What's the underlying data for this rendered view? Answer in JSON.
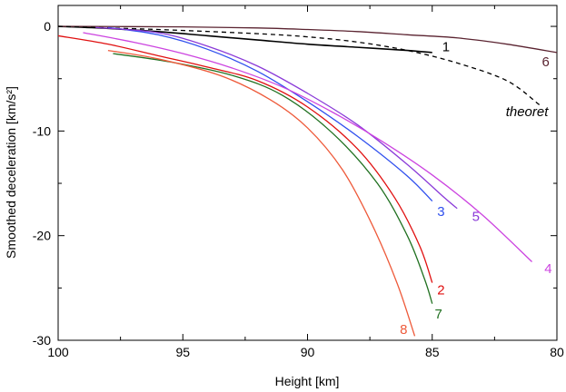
{
  "chart_data": {
    "type": "line",
    "title": "",
    "xlabel": "Height [km]",
    "ylabel": "Smoothed deceleration [km/s²]",
    "xlim": [
      100,
      80
    ],
    "ylim": [
      -30,
      2
    ],
    "xticks": [
      100,
      95,
      90,
      85,
      80
    ],
    "yticks": [
      0,
      -10,
      -20,
      -30
    ],
    "xtick_labels": [
      "100",
      "95",
      "90",
      "85",
      "80"
    ],
    "ytick_labels": [
      "0",
      "-10",
      "-20",
      "-30"
    ],
    "grid": false,
    "series": [
      {
        "name": "1",
        "color": "#000000",
        "dash": false,
        "label_at": [
          84.6,
          -2.4
        ],
        "points": [
          [
            100,
            0
          ],
          [
            98,
            -0.2
          ],
          [
            96,
            -0.5
          ],
          [
            94,
            -0.9
          ],
          [
            92,
            -1.3
          ],
          [
            90,
            -1.7
          ],
          [
            88,
            -2.0
          ],
          [
            86,
            -2.3
          ],
          [
            85,
            -2.5
          ]
        ]
      },
      {
        "name": "6",
        "color": "#5a2330",
        "dash": false,
        "label_at": [
          80.6,
          -3.8
        ],
        "points": [
          [
            100,
            0
          ],
          [
            95,
            -0.05
          ],
          [
            92,
            -0.15
          ],
          [
            90,
            -0.3
          ],
          [
            88,
            -0.5
          ],
          [
            86,
            -0.8
          ],
          [
            84,
            -1.1
          ],
          [
            82,
            -1.7
          ],
          [
            80,
            -2.5
          ]
        ]
      },
      {
        "name": "theoret",
        "color": "#000000",
        "dash": true,
        "label_at": [
          81.2,
          -8.6
        ],
        "points": [
          [
            100,
            0
          ],
          [
            96,
            -0.3
          ],
          [
            92,
            -0.7
          ],
          [
            90,
            -1.0
          ],
          [
            88,
            -1.5
          ],
          [
            86,
            -2.3
          ],
          [
            84,
            -3.5
          ],
          [
            82,
            -5.2
          ],
          [
            80.7,
            -7.5
          ]
        ]
      },
      {
        "name": "3",
        "color": "#3050ee",
        "dash": false,
        "label_at": [
          84.8,
          -18.1
        ],
        "points": [
          [
            98,
            -0.1
          ],
          [
            96,
            -0.8
          ],
          [
            94,
            -2.2
          ],
          [
            92,
            -4.3
          ],
          [
            90,
            -7.2
          ],
          [
            88,
            -10.5
          ],
          [
            86,
            -14.3
          ],
          [
            85,
            -16.7
          ]
        ]
      },
      {
        "name": "5",
        "color": "#8a3ad8",
        "dash": false,
        "label_at": [
          83.4,
          -18.6
        ],
        "points": [
          [
            98.5,
            -0.1
          ],
          [
            96,
            -0.6
          ],
          [
            94,
            -1.9
          ],
          [
            92,
            -3.8
          ],
          [
            90,
            -6.4
          ],
          [
            88,
            -9.4
          ],
          [
            86,
            -13.2
          ],
          [
            84.5,
            -16.4
          ],
          [
            84,
            -17.4
          ]
        ]
      },
      {
        "name": "4",
        "color": "#cc44e0",
        "dash": false,
        "label_at": [
          80.5,
          -23.6
        ],
        "points": [
          [
            99,
            -0.6
          ],
          [
            97,
            -1.5
          ],
          [
            95,
            -2.6
          ],
          [
            93,
            -4.0
          ],
          [
            91,
            -5.8
          ],
          [
            89,
            -8.2
          ],
          [
            87,
            -11.0
          ],
          [
            85,
            -14.2
          ],
          [
            83,
            -18.0
          ],
          [
            81,
            -22.5
          ]
        ]
      },
      {
        "name": "2",
        "color": "#e01010",
        "dash": false,
        "label_at": [
          84.8,
          -25.6
        ],
        "points": [
          [
            100,
            -0.9
          ],
          [
            98,
            -1.7
          ],
          [
            96,
            -2.8
          ],
          [
            94,
            -3.9
          ],
          [
            92,
            -5.2
          ],
          [
            90,
            -7.7
          ],
          [
            88,
            -11.7
          ],
          [
            86.5,
            -16.4
          ],
          [
            85.5,
            -21.0
          ],
          [
            85,
            -24.5
          ]
        ]
      },
      {
        "name": "7",
        "color": "#207020",
        "dash": false,
        "label_at": [
          84.9,
          -27.9
        ],
        "points": [
          [
            97.8,
            -2.6
          ],
          [
            95.5,
            -3.4
          ],
          [
            93,
            -4.7
          ],
          [
            91,
            -6.6
          ],
          [
            89,
            -10.2
          ],
          [
            87.2,
            -15.0
          ],
          [
            86,
            -20.0
          ],
          [
            85.3,
            -24.2
          ],
          [
            85,
            -26.5
          ]
        ]
      },
      {
        "name": "8",
        "color": "#ee5a3a",
        "dash": false,
        "label_at": [
          86.3,
          -29.4
        ],
        "points": [
          [
            98,
            -2.3
          ],
          [
            96,
            -3.1
          ],
          [
            93.5,
            -4.7
          ],
          [
            91.5,
            -7.0
          ],
          [
            90,
            -9.7
          ],
          [
            88.6,
            -13.7
          ],
          [
            87.4,
            -19.0
          ],
          [
            86.4,
            -24.6
          ],
          [
            85.7,
            -29.6
          ]
        ]
      }
    ]
  }
}
